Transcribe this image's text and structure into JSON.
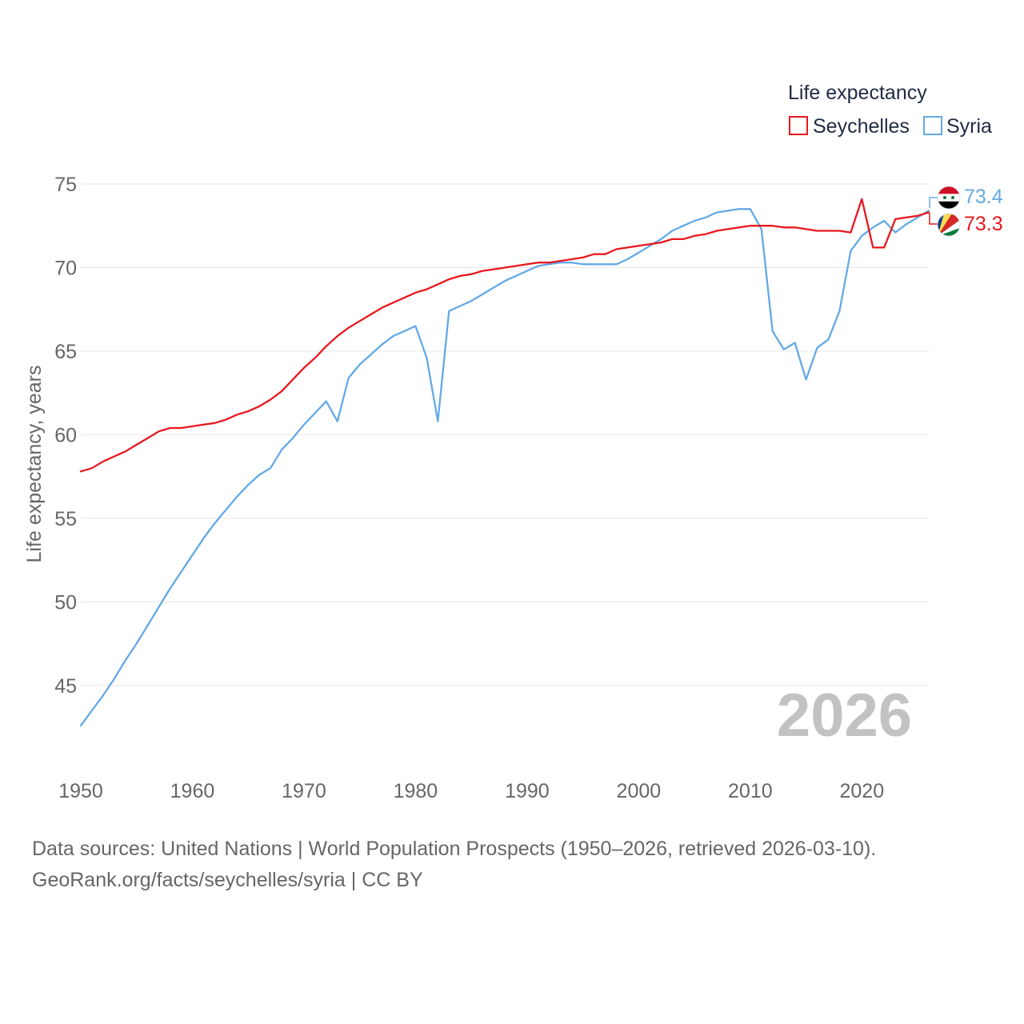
{
  "chart_data": {
    "type": "line",
    "title": "",
    "xlabel": "",
    "ylabel": "Life expectancy, years",
    "legend_title": "Life expectancy",
    "legend_position": "top-right",
    "xlim": [
      1950,
      2026
    ],
    "ylim": [
      42.5,
      75
    ],
    "x_ticks": [
      1950,
      1960,
      1970,
      1980,
      1990,
      2000,
      2010,
      2020
    ],
    "y_ticks": [
      45,
      50,
      55,
      60,
      65,
      70,
      75
    ],
    "grid": true,
    "year_watermark": "2026",
    "series": [
      {
        "name": "Seychelles",
        "color": "#e8181f",
        "end_label": "73.3",
        "x": [
          1950,
          1951,
          1952,
          1953,
          1954,
          1955,
          1956,
          1957,
          1958,
          1959,
          1960,
          1961,
          1962,
          1963,
          1964,
          1965,
          1966,
          1967,
          1968,
          1969,
          1970,
          1971,
          1972,
          1973,
          1974,
          1975,
          1976,
          1977,
          1978,
          1979,
          1980,
          1981,
          1982,
          1983,
          1984,
          1985,
          1986,
          1987,
          1988,
          1989,
          1990,
          1991,
          1992,
          1993,
          1994,
          1995,
          1996,
          1997,
          1998,
          1999,
          2000,
          2001,
          2002,
          2003,
          2004,
          2005,
          2006,
          2007,
          2008,
          2009,
          2010,
          2011,
          2012,
          2013,
          2014,
          2015,
          2016,
          2017,
          2018,
          2019,
          2020,
          2021,
          2022,
          2023,
          2024,
          2025,
          2026
        ],
        "values": [
          57.8,
          58.0,
          58.4,
          58.7,
          59.0,
          59.4,
          59.8,
          60.2,
          60.4,
          60.4,
          60.5,
          60.6,
          60.7,
          60.9,
          61.2,
          61.4,
          61.7,
          62.1,
          62.6,
          63.3,
          64.0,
          64.6,
          65.3,
          65.9,
          66.4,
          66.8,
          67.2,
          67.6,
          67.9,
          68.2,
          68.5,
          68.7,
          69.0,
          69.3,
          69.5,
          69.6,
          69.8,
          69.9,
          70.0,
          70.1,
          70.2,
          70.3,
          70.3,
          70.4,
          70.5,
          70.6,
          70.8,
          70.8,
          71.1,
          71.2,
          71.3,
          71.4,
          71.5,
          71.7,
          71.7,
          71.9,
          72.0,
          72.2,
          72.3,
          72.4,
          72.5,
          72.5,
          72.5,
          72.4,
          72.4,
          72.3,
          72.2,
          72.2,
          72.2,
          72.1,
          74.1,
          71.2,
          71.2,
          72.9,
          73.0,
          73.1,
          73.3
        ]
      },
      {
        "name": "Syria",
        "color": "#64a9e6",
        "end_label": "73.4",
        "x": [
          1950,
          1951,
          1952,
          1953,
          1954,
          1955,
          1956,
          1957,
          1958,
          1959,
          1960,
          1961,
          1962,
          1963,
          1964,
          1965,
          1966,
          1967,
          1968,
          1969,
          1970,
          1971,
          1972,
          1973,
          1974,
          1975,
          1976,
          1977,
          1978,
          1979,
          1980,
          1981,
          1982,
          1983,
          1984,
          1985,
          1986,
          1987,
          1988,
          1989,
          1990,
          1991,
          1992,
          1993,
          1994,
          1995,
          1996,
          1997,
          1998,
          1999,
          2000,
          2001,
          2002,
          2003,
          2004,
          2005,
          2006,
          2007,
          2008,
          2009,
          2010,
          2011,
          2012,
          2013,
          2014,
          2015,
          2016,
          2017,
          2018,
          2019,
          2020,
          2021,
          2022,
          2023,
          2024,
          2025,
          2026
        ],
        "values": [
          42.6,
          43.5,
          44.4,
          45.4,
          46.5,
          47.5,
          48.6,
          49.7,
          50.8,
          51.8,
          52.8,
          53.8,
          54.7,
          55.5,
          56.3,
          57.0,
          57.6,
          58.0,
          59.1,
          59.8,
          60.6,
          61.3,
          62.0,
          60.8,
          63.4,
          64.2,
          64.8,
          65.4,
          65.9,
          66.2,
          66.5,
          64.6,
          60.8,
          67.4,
          67.7,
          68.0,
          68.4,
          68.8,
          69.2,
          69.5,
          69.8,
          70.1,
          70.2,
          70.3,
          70.3,
          70.2,
          70.2,
          70.2,
          70.2,
          70.5,
          70.9,
          71.3,
          71.7,
          72.2,
          72.5,
          72.8,
          73.0,
          73.3,
          73.4,
          73.5,
          73.5,
          72.3,
          66.2,
          65.1,
          65.5,
          63.3,
          65.2,
          65.7,
          67.4,
          71.0,
          71.9,
          72.4,
          72.8,
          72.1,
          72.6,
          73.0,
          73.4
        ]
      }
    ]
  },
  "footer": {
    "line1": "Data sources: United Nations | World Population Prospects (1950–2026, retrieved 2026-03-10).",
    "line2": "GeoRank.org/facts/seychelles/syria | CC BY"
  }
}
